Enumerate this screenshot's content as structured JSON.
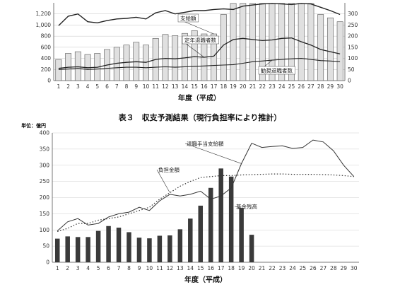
{
  "chart_data": [
    {
      "type": "bar+line",
      "title": "",
      "xlabel": "年度（平成）",
      "x": [
        1,
        2,
        3,
        4,
        5,
        6,
        7,
        8,
        9,
        10,
        11,
        12,
        13,
        14,
        15,
        16,
        17,
        18,
        19,
        20,
        21,
        22,
        23,
        24,
        25,
        26,
        27,
        28,
        29,
        30
      ],
      "ylim_left": [
        0,
        1400
      ],
      "yticks_left": [
        0,
        200,
        400,
        600,
        800,
        1000,
        1200
      ],
      "ylim_right": [
        0,
        350
      ],
      "yticks_right": [
        0,
        50,
        100,
        150,
        200,
        250,
        300
      ],
      "series": [
        {
          "name": "支給額",
          "kind": "bar",
          "axis": "left",
          "values": [
            380,
            490,
            520,
            470,
            490,
            560,
            600,
            640,
            690,
            640,
            760,
            830,
            810,
            850,
            900,
            840,
            840,
            1190,
            1390,
            1390,
            1390,
            1390,
            1390,
            1390,
            1390,
            1390,
            1390,
            1190,
            1130,
            1060
          ]
        },
        {
          "kind": "line",
          "axis": "left",
          "values": [
            990,
            1160,
            1200,
            1060,
            1040,
            1080,
            1110,
            1120,
            1140,
            1110,
            1220,
            1260,
            1200,
            1230,
            1260,
            1260,
            1280,
            1290,
            1280,
            1340,
            1360,
            1380,
            1390,
            1380,
            1370,
            1390,
            1380,
            1320,
            1260,
            1190
          ]
        },
        {
          "name": "定年退職者数",
          "kind": "line",
          "axis": "right",
          "values": [
            55,
            60,
            62,
            58,
            60,
            70,
            78,
            82,
            85,
            82,
            95,
            100,
            98,
            102,
            108,
            105,
            110,
            160,
            185,
            190,
            185,
            180,
            183,
            190,
            192,
            175,
            160,
            140,
            130,
            120
          ]
        },
        {
          "name": "勧奨退職者数",
          "kind": "line",
          "axis": "right",
          "values": [
            50,
            52,
            55,
            50,
            52,
            55,
            58,
            60,
            60,
            58,
            60,
            62,
            60,
            62,
            64,
            66,
            68,
            70,
            72,
            78,
            85,
            88,
            92,
            95,
            98,
            100,
            95,
            90,
            88,
            85
          ]
        }
      ]
    },
    {
      "type": "bar+line",
      "title": "表３　収支予測結果（現行負担率により推計）",
      "unit_label": "単位：億円",
      "xlabel": "年度（平成）",
      "x": [
        1,
        2,
        3,
        4,
        5,
        6,
        7,
        8,
        9,
        10,
        11,
        12,
        13,
        14,
        15,
        16,
        17,
        18,
        19,
        20,
        21,
        22,
        23,
        24,
        25,
        26,
        27,
        28,
        29,
        30
      ],
      "ylim": [
        0,
        400
      ],
      "yticks": [
        0,
        50,
        100,
        150,
        200,
        250,
        300,
        350,
        400
      ],
      "series": [
        {
          "name": "基金残高",
          "kind": "bar",
          "values": [
            73,
            80,
            78,
            78,
            97,
            112,
            107,
            93,
            76,
            74,
            82,
            83,
            102,
            135,
            175,
            230,
            290,
            265,
            168,
            85,
            null,
            null,
            null,
            null,
            null,
            null,
            null,
            null,
            null,
            null
          ]
        },
        {
          "name": "退職手当支給額",
          "kind": "line",
          "values": [
            97,
            125,
            135,
            115,
            120,
            140,
            150,
            155,
            170,
            160,
            190,
            210,
            205,
            210,
            220,
            195,
            205,
            230,
            305,
            368,
            355,
            358,
            360,
            352,
            355,
            378,
            372,
            345,
            300,
            265
          ]
        },
        {
          "name": "負担金額",
          "kind": "line",
          "style": "dotted",
          "values": [
            95,
            105,
            120,
            120,
            130,
            135,
            140,
            150,
            160,
            170,
            195,
            215,
            235,
            250,
            262,
            265,
            268,
            268,
            270,
            271,
            272,
            273,
            273,
            272,
            272,
            272,
            271,
            270,
            268,
            265
          ]
        }
      ]
    }
  ]
}
